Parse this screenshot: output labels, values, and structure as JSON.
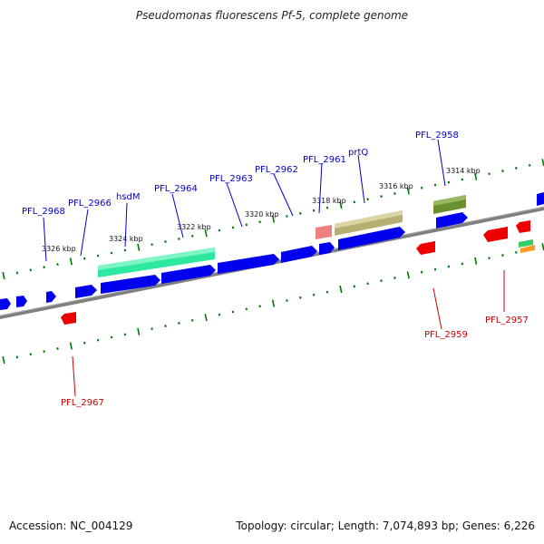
{
  "title": "Pseudomonas fluorescens Pf-5, complete genome",
  "footer": {
    "accession": "Accession: NC_004129",
    "stats": "Topology: circular; Length: 7,074,893 bp; Genes: 6,226"
  },
  "colors": {
    "backbone": "#808080",
    "forward_gene": "#0000ee",
    "reverse_gene": "#ee0000",
    "forward_label": "#0000cc",
    "reverse_label": "#cc0000",
    "tick": "#007700",
    "feature_teal": "#2ee8a0",
    "feature_olive": "#b5b070",
    "feature_dark_olive": "#6a8f2e",
    "feature_pink": "#ee8080",
    "feature_green": "#33cc66",
    "feature_orange": "#ff9922"
  },
  "kbp_labels": [
    "3326 kbp",
    "3324 kbp",
    "3322 kbp",
    "3320 kbp",
    "3318 kbp",
    "3316 kbp",
    "3314 kbp"
  ],
  "forward_labels": [
    "PFL_2968",
    "PFL_2966",
    "hsdM",
    "PFL_2964",
    "PFL_2963",
    "PFL_2962",
    "PFL_2961",
    "prtQ",
    "PFL_2958"
  ],
  "reverse_labels": [
    "PFL_2967",
    "PFL_2959",
    "PFL_2957"
  ]
}
